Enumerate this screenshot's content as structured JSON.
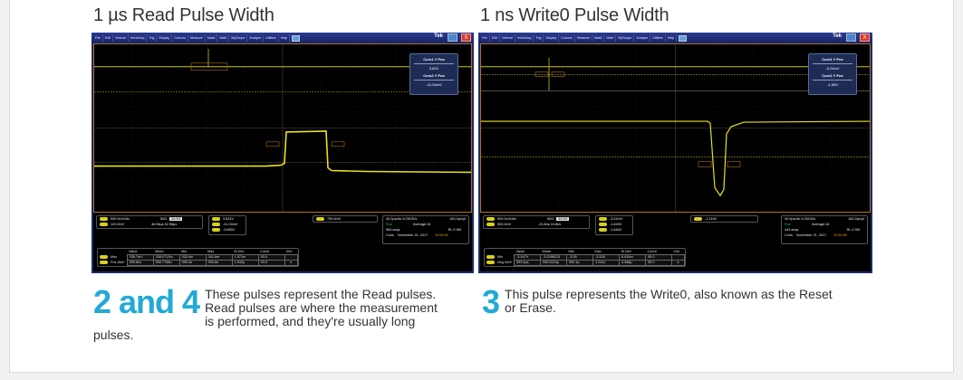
{
  "colors": {
    "accent": "#22a9d6",
    "trace": "#d8d020",
    "cursor": "#b0701c"
  },
  "menu": [
    "File",
    "Edit",
    "Vertical",
    "Horiz/Acq",
    "Trig",
    "Display",
    "Cursors",
    "Measure",
    "Mask",
    "Math",
    "MyScope",
    "Analyze",
    "Utilities",
    "Help"
  ],
  "brand": "Tek",
  "close_label": "X",
  "panels": [
    {
      "title": "1 µs Read Pulse Width",
      "number": "2 and 4",
      "description": "These pulses represent the Read pulses. Read pulses are where the measurement is performed, and they're usually long pulses.",
      "cursors": {
        "curs1_label": "Curs1 Y Pos",
        "curs1_value": "3.62V",
        "curs2_label": "Curs2 Y Pos",
        "curs2_value": "-41.04mV"
      },
      "channel": {
        "scale": "500.0mV/div",
        "impedance": "50Ω",
        "bw": "33.0G",
        "offset": "120.0mV",
        "times": "46.98µs  52.98µs"
      },
      "readouts": [
        "3.624V",
        "-41.04mV",
        "-3.665V"
      ],
      "trigger": "750.0mV",
      "acq": {
        "timebase": "40.0µs/div  6.25GS/s",
        "resolution": "160.0ps/pt",
        "state": "Run",
        "mode": "Average:16",
        "acqs": "984 acqs",
        "rl": "RL:2.5M",
        "cons": "Cons",
        "date": "November 21, 2017",
        "time": "10:50:52"
      },
      "table": {
        "headers": [
          "Value",
          "Mean",
          "Min",
          "Max",
          "St Dev",
          "Count",
          "Info"
        ],
        "rows": [
          [
            "Max",
            "336.7mV",
            "338.0713m",
            "333.4m",
            "341.8m",
            "1.571m",
            "93.0"
          ],
          [
            "Pos Wid*",
            "999.8ns",
            "999.7768n",
            "999.3n",
            "999.8n",
            "1.942p",
            "93.0"
          ]
        ]
      }
    },
    {
      "title": "1 ns Write0 Pulse Width",
      "number": "3",
      "description": "This pulse represents the Write0, also known as the Reset or Erase.",
      "cursors": {
        "curs1_label": "Curs1 Y Pos",
        "curs1_value": "-3.24mV",
        "curs2_label": "Curs2 Y Pos",
        "curs2_value": "-1.65V"
      },
      "channel": {
        "scale": "500.0mV/div",
        "impedance": "50Ω",
        "bw": "33.0G",
        "offset": "500.0mV",
        "times": "-24.8ns  16.8ns"
      },
      "readouts": [
        "-3.24mV",
        "-1.649V",
        "-1.646V"
      ],
      "trigger": "-1.416V",
      "acq": {
        "timebase": "40.0ps/div  6.25GS/s",
        "resolution": "160.0ps/pt",
        "state": "Run",
        "mode": "Average:16",
        "acqs": "443 acqs",
        "rl": "RL:2.5M",
        "cons": "Cons",
        "date": "November 21, 2017",
        "time": "10:54:53"
      },
      "table": {
        "headers": [
          "Value",
          "Mean",
          "Min",
          "Max",
          "St Dev",
          "Count",
          "Info"
        ],
        "rows": [
          [
            "Min",
            "-3.547V",
            "-3.5396223",
            "-3.55",
            "-3.526",
            "6.615m",
            "95.0"
          ],
          [
            "Neg Wid*",
            "999.4ps",
            "995.0224p",
            "992.1p",
            "1.011n",
            "4.586p",
            "95.0"
          ]
        ]
      }
    }
  ]
}
